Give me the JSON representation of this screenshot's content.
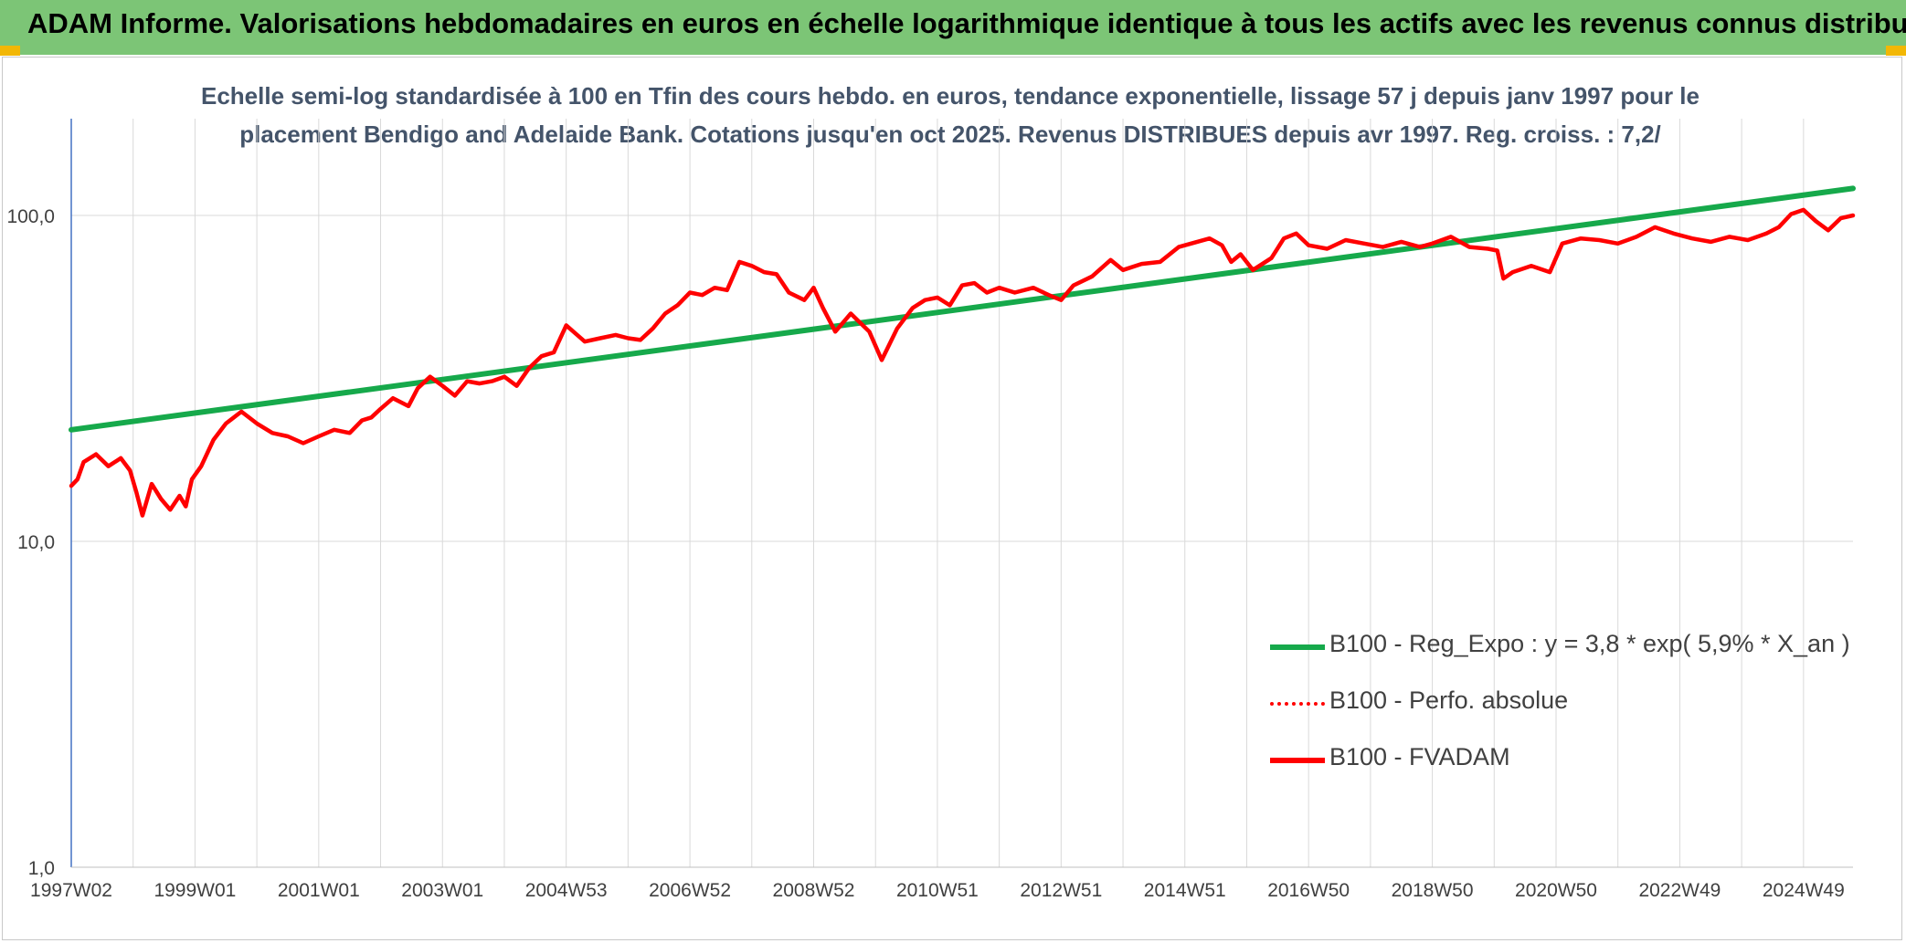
{
  "header": {
    "title": "ADAM Informe. Valorisations hebdomadaires en euros en échelle logarithmique identique à tous les actifs avec les revenus connus distribués"
  },
  "colors": {
    "header_bg": "#7cc576",
    "accent_corner": "#f2b705",
    "trend_line": "#16a94b",
    "fvadam_line": "#ff0000",
    "grid": "#d9d9d9"
  },
  "chart_data": {
    "type": "line",
    "title_line1": "Echelle semi-log standardisée à 100 en Tfin des cours hebdo. en euros, tendance exponentielle, lissage 57 j depuis janv 1997 pour le",
    "title_line2": "placement Bendigo and Adelaide Bank. Cotations jusqu'en oct 2025. Revenus DISTRIBUES depuis avr 1997. Reg. croiss. : 7,2/",
    "y_scale": "log",
    "ylim": [
      1,
      200
    ],
    "y_ticks": [
      "1,0",
      "10,0",
      "100,0"
    ],
    "y_tick_values": [
      1,
      10,
      100
    ],
    "xlim": [
      1997.0,
      2025.8
    ],
    "x_ticks": [
      "1997W02",
      "1999W01",
      "2001W01",
      "2003W01",
      "2004W53",
      "2006W52",
      "2008W52",
      "2010W51",
      "2012W51",
      "2014W51",
      "2016W50",
      "2018W50",
      "2020W50",
      "2022W49",
      "2024W49"
    ],
    "x_tick_positions": [
      1997.0,
      1999.0,
      2001.0,
      2003.0,
      2005.0,
      2007.0,
      2009.0,
      2011.0,
      2013.0,
      2015.0,
      2017.0,
      2019.0,
      2021.0,
      2023.0,
      2025.0
    ],
    "grid": true,
    "legend_position": "bottom-right",
    "series": [
      {
        "name": "B100 - Reg_Expo : y = 3,8 * exp( 5,9% *  X_an )",
        "style": "solid-thick",
        "color": "#16a94b",
        "x": [
          1997.0,
          2025.8
        ],
        "y": [
          22.0,
          121.0
        ]
      },
      {
        "name": "B100 - Perfo. absolue",
        "style": "dotted",
        "color": "#ff0000",
        "x": [],
        "y": []
      },
      {
        "name": "B100 - FVADAM",
        "style": "solid",
        "color": "#ff0000",
        "x": [
          1997.0,
          1997.1,
          1997.2,
          1997.4,
          1997.6,
          1997.8,
          1997.95,
          1998.05,
          1998.15,
          1998.3,
          1998.45,
          1998.6,
          1998.75,
          1998.85,
          1998.95,
          1999.1,
          1999.3,
          1999.5,
          1999.75,
          2000.0,
          2000.25,
          2000.5,
          2000.75,
          2001.0,
          2001.25,
          2001.5,
          2001.7,
          2001.85,
          2002.0,
          2002.2,
          2002.45,
          2002.6,
          2002.8,
          2003.0,
          2003.2,
          2003.4,
          2003.6,
          2003.8,
          2004.0,
          2004.2,
          2004.4,
          2004.6,
          2004.8,
          2005.0,
          2005.3,
          2005.55,
          2005.8,
          2006.0,
          2006.2,
          2006.4,
          2006.6,
          2006.8,
          2007.0,
          2007.2,
          2007.4,
          2007.6,
          2007.8,
          2008.0,
          2008.2,
          2008.4,
          2008.6,
          2008.85,
          2009.0,
          2009.15,
          2009.35,
          2009.6,
          2009.9,
          2010.1,
          2010.35,
          2010.6,
          2010.8,
          2011.0,
          2011.2,
          2011.4,
          2011.6,
          2011.8,
          2012.0,
          2012.25,
          2012.55,
          2012.8,
          2013.0,
          2013.2,
          2013.5,
          2013.8,
          2014.0,
          2014.3,
          2014.6,
          2014.9,
          2015.1,
          2015.4,
          2015.6,
          2015.75,
          2015.9,
          2016.1,
          2016.4,
          2016.6,
          2016.8,
          2017.0,
          2017.3,
          2017.6,
          2017.9,
          2018.2,
          2018.5,
          2018.8,
          2019.0,
          2019.3,
          2019.6,
          2019.9,
          2020.05,
          2020.15,
          2020.3,
          2020.6,
          2020.9,
          2021.1,
          2021.4,
          2021.7,
          2022.0,
          2022.3,
          2022.6,
          2022.9,
          2023.2,
          2023.5,
          2023.8,
          2024.1,
          2024.4,
          2024.6,
          2024.8,
          2025.0,
          2025.2,
          2025.4,
          2025.6,
          2025.8
        ],
        "y": [
          14.8,
          15.5,
          17.5,
          18.5,
          17.0,
          18.0,
          16.5,
          14.2,
          12.0,
          15.0,
          13.5,
          12.5,
          13.8,
          12.8,
          15.5,
          17.0,
          20.5,
          23.0,
          25.0,
          23.0,
          21.5,
          21.0,
          20.0,
          21.0,
          22.0,
          21.5,
          23.5,
          24.0,
          25.5,
          27.5,
          26.0,
          29.5,
          32.0,
          30.0,
          28.0,
          31.0,
          30.5,
          31.0,
          32.0,
          30.0,
          34.0,
          37.0,
          38.0,
          46.0,
          41.0,
          42.0,
          43.0,
          42.0,
          41.5,
          45.0,
          50.0,
          53.0,
          58.0,
          57.0,
          60.0,
          59.0,
          72.0,
          70.0,
          67.0,
          66.0,
          58.0,
          55.0,
          60.0,
          52.0,
          44.0,
          50.0,
          44.0,
          36.0,
          45.0,
          52.0,
          55.0,
          56.0,
          53.0,
          61.0,
          62.0,
          58.0,
          60.0,
          58.0,
          60.0,
          57.0,
          55.0,
          61.0,
          65.0,
          73.0,
          68.0,
          71.0,
          72.0,
          80.0,
          82.0,
          85.0,
          81.0,
          72.0,
          76.0,
          68.0,
          74.0,
          85.0,
          88.0,
          81.0,
          79.0,
          84.0,
          82.0,
          80.0,
          83.0,
          80.0,
          82.0,
          86.0,
          80.0,
          79.0,
          78.0,
          64.0,
          67.0,
          70.0,
          67.0,
          82.0,
          85.0,
          84.0,
          82.0,
          86.0,
          92.0,
          88.0,
          85.0,
          83.0,
          86.0,
          84.0,
          88.0,
          92.0,
          101.0,
          104.0,
          96.0,
          90.0,
          98.0,
          100.0
        ]
      }
    ]
  }
}
